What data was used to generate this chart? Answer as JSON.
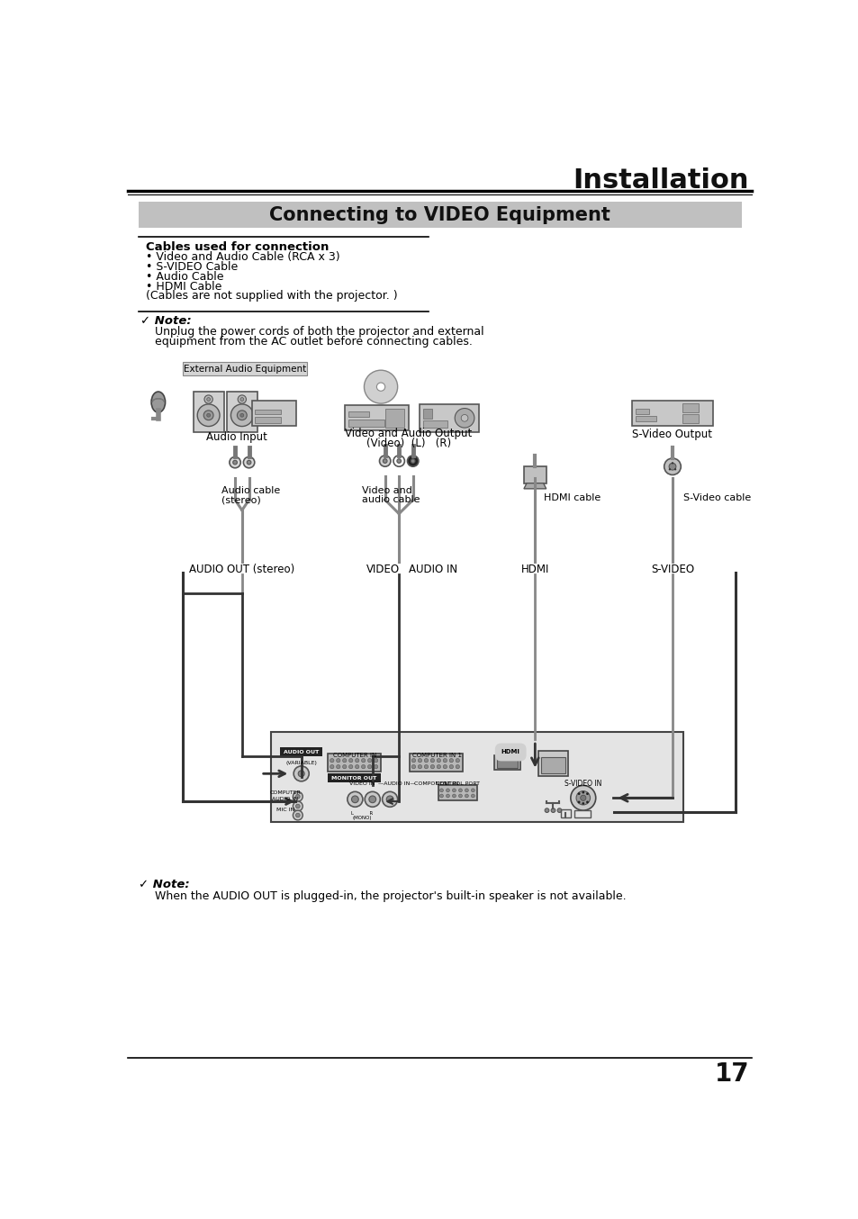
{
  "page_bg": "#ffffff",
  "title_text": "Installation",
  "title_fontsize": 22,
  "section_title": "Connecting to VIDEO Equipment",
  "section_bg": "#c8c8c8",
  "section_fontsize": 15,
  "cables_header": "Cables used for connection",
  "cables_list": [
    "• Video and Audio Cable (RCA x 3)",
    "• S-VIDEO Cable",
    "• Audio Cable",
    "• HDMI Cable",
    "(Cables are not supplied with the projector. )"
  ],
  "note1_label": "✓ Note:",
  "note1_line1": "Unplug the power cords of both the projector and external",
  "note1_line2": "equipment from the AC outlet before connecting cables.",
  "note2_label": "✓ Note:",
  "note2_text": "When the AUDIO OUT is plugged-in, the projector's built-in speaker is not available.",
  "diagram_label_ext": "External Audio Equipment",
  "label_audio_input": "Audio Input",
  "label_video_audio_output": "Video and Audio Output",
  "label_video_l_r": "(Video)  (L)   (R)",
  "label_svideo_output": "S-Video Output",
  "label_audio_cable_l1": "Audio cable",
  "label_audio_cable_l2": "(stereo)",
  "label_video_audio_cable_l1": "Video and",
  "label_video_audio_cable_l2": "audio cable",
  "label_hdmi_cable": "HDMI cable",
  "label_svideo_cable": "S-Video cable",
  "label_audio_out": "AUDIO OUT (stereo)",
  "label_video": "VIDEO",
  "label_audio_in": "AUDIO IN",
  "label_hdmi": "HDMI",
  "label_svideo": "S-VIDEO",
  "page_number": "17"
}
